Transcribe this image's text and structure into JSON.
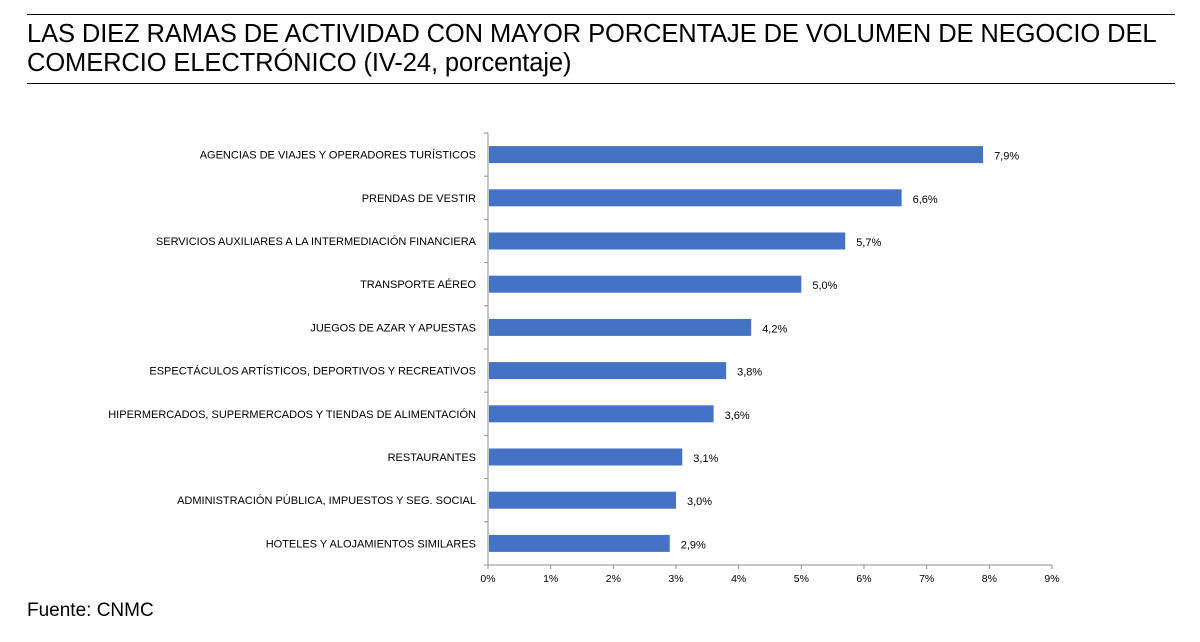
{
  "title": "LAS DIEZ RAMAS DE ACTIVIDAD CON MAYOR PORCENTAJE DE VOLUMEN DE NEGOCIO DEL COMERCIO ELECTRÓNICO (IV-24, porcentaje)",
  "source": "Fuente: CNMC",
  "chart_data": {
    "type": "bar",
    "orientation": "horizontal",
    "categories": [
      "AGENCIAS DE VIAJES Y OPERADORES TURÍSTICOS",
      "PRENDAS DE VESTIR",
      "SERVICIOS AUXILIARES A LA INTERMEDIACIÓN FINANCIERA",
      "TRANSPORTE AÉREO",
      "JUEGOS DE AZAR Y APUESTAS",
      "ESPECTÁCULOS ARTÍSTICOS, DEPORTIVOS Y RECREATIVOS",
      "HIPERMERCADOS, SUPERMERCADOS Y TIENDAS DE ALIMENTACIÓN",
      "RESTAURANTES",
      "ADMINISTRACIÓN PÚBLICA, IMPUESTOS Y SEG. SOCIAL",
      "HOTELES  Y ALOJAMIENTOS SIMILARES"
    ],
    "values": [
      7.9,
      6.6,
      5.7,
      5.0,
      4.2,
      3.8,
      3.6,
      3.1,
      3.0,
      2.9
    ],
    "value_labels": [
      "7,9%",
      "6,6%",
      "5,7%",
      "5,0%",
      "4,2%",
      "3,8%",
      "3,6%",
      "3,1%",
      "3,0%",
      "2,9%"
    ],
    "xlim": [
      0,
      9
    ],
    "xticks": [
      0,
      1,
      2,
      3,
      4,
      5,
      6,
      7,
      8,
      9
    ],
    "xtick_labels": [
      "0%",
      "1%",
      "2%",
      "3%",
      "4%",
      "5%",
      "6%",
      "7%",
      "8%",
      "9%"
    ],
    "grid": false,
    "legend": "none",
    "bar_color": "#4472c4"
  }
}
